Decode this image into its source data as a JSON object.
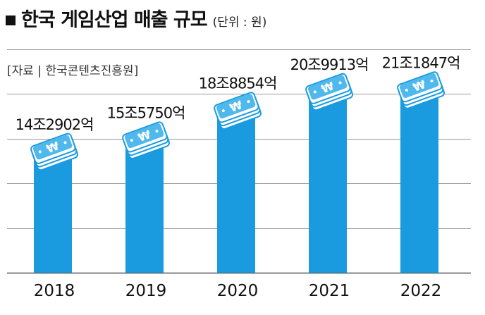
{
  "header": {
    "title": "한국 게임산업 매출 규모",
    "unit": "(단위 : 원)"
  },
  "source": "[자료 | 한국콘텐츠진흥원]",
  "colors": {
    "bar": "#1a9be0",
    "coin_face": "#4fb8ec",
    "grid": "#9a9a9a",
    "text": "#111111"
  },
  "icons": {
    "bar_top": "won-coin-stack-icon"
  },
  "chart_data": {
    "type": "bar",
    "title": "한국 게임산업 매출 규모",
    "categories": [
      "2018",
      "2019",
      "2020",
      "2021",
      "2022"
    ],
    "values": [
      142902,
      155750,
      188854,
      209913,
      211847
    ],
    "value_unit": "억원",
    "data_labels": [
      "14조2902억",
      "15조5750억",
      "18조8854억",
      "20조9913억",
      "21조1847억"
    ],
    "ylim": [
      0,
      250000
    ],
    "grid": true,
    "legend": "none"
  }
}
